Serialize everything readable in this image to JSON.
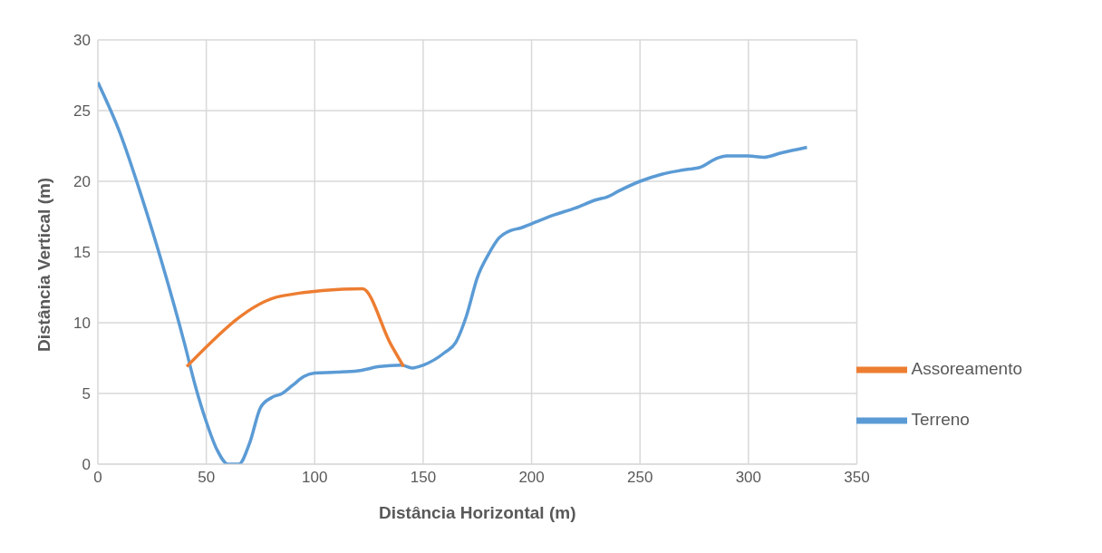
{
  "chart_data": {
    "type": "line",
    "xlabel": "Distância Horizontal (m)",
    "ylabel": "Distância Vertical (m)",
    "xlim": [
      0,
      350
    ],
    "xticks": [
      0,
      50,
      100,
      150,
      200,
      250,
      300,
      350
    ],
    "ylim": [
      0,
      30
    ],
    "yticks": [
      0,
      5,
      10,
      15,
      20,
      25,
      30
    ],
    "grid": true,
    "legend": "bottom right",
    "marker": "none",
    "line_style": "solid",
    "series": [
      {
        "name": "Terreno",
        "color": "#5b9bd5",
        "x": [
          0,
          10,
          20,
          30,
          40,
          45,
          50,
          55,
          60,
          65,
          70,
          75,
          80,
          85,
          90,
          95,
          100,
          110,
          120,
          130,
          140,
          145,
          150,
          160,
          165,
          170,
          175,
          180,
          185,
          190,
          195,
          200,
          210,
          220,
          230,
          235,
          240,
          250,
          260,
          270,
          278,
          285,
          290,
          300,
          307,
          315,
          327
        ],
        "values": [
          27,
          23.5,
          19,
          14,
          8.5,
          5.5,
          3,
          1,
          0,
          0,
          1.5,
          4,
          4.7,
          5,
          5.6,
          6.2,
          6.45,
          6.5,
          6.6,
          6.9,
          7,
          6.8,
          7,
          7.9,
          8.6,
          10.5,
          13.2,
          14.8,
          16,
          16.5,
          16.7,
          17,
          17.6,
          18.1,
          18.7,
          18.9,
          19.3,
          20,
          20.5,
          20.8,
          21,
          21.6,
          21.8,
          21.8,
          21.7,
          22,
          22.4
        ]
      },
      {
        "name": "Assoreamento",
        "color": "#ed7d31",
        "x": [
          41,
          85,
          122,
          135,
          141
        ],
        "values": [
          6.9,
          11.9,
          12.4,
          8.5,
          6.9
        ]
      }
    ]
  }
}
